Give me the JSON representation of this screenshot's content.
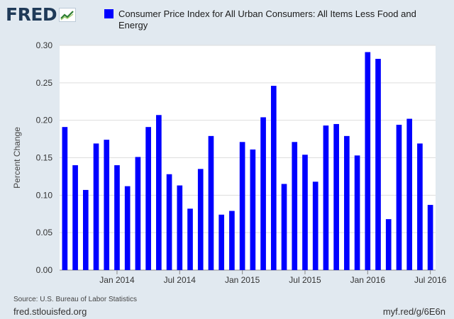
{
  "header": {
    "logo_text": "FRED",
    "logo_icon": "line-chart-icon"
  },
  "chart_data": {
    "type": "bar",
    "legend_position": "top",
    "series": [
      {
        "name": "Consumer Price Index for All Urban Consumers: All Items Less Food and Energy",
        "color": "#0000ff",
        "values": [
          0.191,
          0.14,
          0.107,
          0.169,
          0.174,
          0.14,
          0.112,
          0.151,
          0.191,
          0.207,
          0.128,
          0.113,
          0.082,
          0.135,
          0.179,
          0.074,
          0.079,
          0.171,
          0.161,
          0.204,
          0.246,
          0.115,
          0.171,
          0.154,
          0.118,
          0.193,
          0.195,
          0.179,
          0.153,
          0.291,
          0.282,
          0.068,
          0.194,
          0.202,
          0.169,
          0.087
        ]
      }
    ],
    "x": [
      "2013-08",
      "2013-09",
      "2013-10",
      "2013-11",
      "2013-12",
      "2014-01",
      "2014-02",
      "2014-03",
      "2014-04",
      "2014-05",
      "2014-06",
      "2014-07",
      "2014-08",
      "2014-09",
      "2014-10",
      "2014-11",
      "2014-12",
      "2015-01",
      "2015-02",
      "2015-03",
      "2015-04",
      "2015-05",
      "2015-06",
      "2015-07",
      "2015-08",
      "2015-09",
      "2015-10",
      "2015-11",
      "2015-12",
      "2016-01",
      "2016-02",
      "2016-03",
      "2016-04",
      "2016-05",
      "2016-06",
      "2016-07"
    ],
    "xtick_labels": [
      "Jan 2014",
      "Jul 2014",
      "Jan 2015",
      "Jul 2015",
      "Jan 2016",
      "Jul 2016"
    ],
    "xtick_at": [
      "2014-01",
      "2014-07",
      "2015-01",
      "2015-07",
      "2016-01",
      "2016-07"
    ],
    "ylabel": "Percent Change",
    "ylim": [
      0,
      0.3
    ],
    "yticks": [
      "0.00",
      "0.05",
      "0.10",
      "0.15",
      "0.20",
      "0.25",
      "0.30"
    ],
    "grid": true
  },
  "footer": {
    "source": "Source: U.S. Bureau of Labor Statistics",
    "site": "fred.stlouisfed.org",
    "short_url": "myf.red/g/6E6n"
  },
  "colors": {
    "background": "#e1e9f0",
    "plot_background": "#ffffff",
    "bar": "#0000ff",
    "gridline": "#dddddd"
  }
}
